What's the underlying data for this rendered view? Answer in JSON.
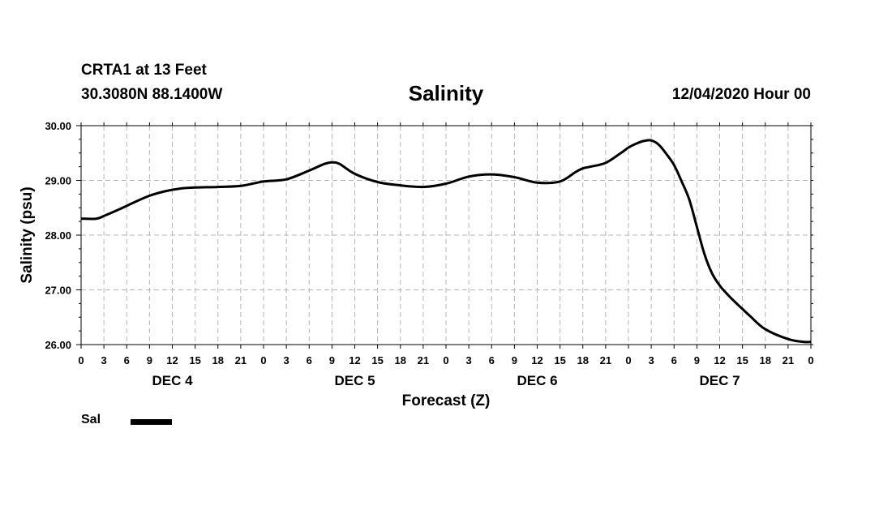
{
  "header": {
    "station": "CRTA1 at 13 Feet",
    "coords": "30.3080N 88.1400W",
    "title": "Salinity",
    "datetime": "12/04/2020 Hour 00"
  },
  "legend": {
    "label": "Sal",
    "color": "#000000"
  },
  "chart_data": {
    "type": "line",
    "title": "Salinity",
    "xlabel": "Forecast (Z)",
    "ylabel": "Salinity (psu)",
    "ylim": [
      26.0,
      30.0
    ],
    "xlim_hours": [
      0,
      96
    ],
    "grid": true,
    "y_ticks": [
      "26.00",
      "27.00",
      "28.00",
      "29.00",
      "30.00"
    ],
    "y_tick_values": [
      26,
      27,
      28,
      29,
      30
    ],
    "x_tick_hours": [
      0,
      3,
      6,
      9,
      12,
      15,
      18,
      21,
      24,
      27,
      30,
      33,
      36,
      39,
      42,
      45,
      48,
      51,
      54,
      57,
      60,
      63,
      66,
      69,
      72,
      75,
      78,
      81,
      84,
      87,
      90,
      93,
      96
    ],
    "x_tick_labels": [
      "0",
      "3",
      "6",
      "9",
      "12",
      "15",
      "18",
      "21",
      "0",
      "3",
      "6",
      "9",
      "12",
      "15",
      "18",
      "21",
      "0",
      "3",
      "6",
      "9",
      "12",
      "15",
      "18",
      "21",
      "0",
      "3",
      "6",
      "9",
      "12",
      "15",
      "18",
      "21",
      "0"
    ],
    "day_labels": [
      {
        "label": "DEC 4",
        "hour": 12
      },
      {
        "label": "DEC 5",
        "hour": 36
      },
      {
        "label": "DEC 6",
        "hour": 60
      },
      {
        "label": "DEC 7",
        "hour": 84
      }
    ],
    "series": [
      {
        "name": "Sal",
        "color": "#000000",
        "x": [
          0,
          2,
          3,
          5,
          7,
          9,
          11,
          13,
          15,
          18,
          21,
          24,
          27,
          30,
          32,
          33,
          34,
          36,
          39,
          42,
          45,
          48,
          51,
          54,
          57,
          60,
          63,
          65,
          66,
          67,
          69,
          71,
          72,
          73,
          74,
          75,
          76,
          77,
          78,
          79,
          80,
          81,
          82,
          83,
          84,
          85,
          86,
          87,
          88,
          90,
          93,
          95,
          96
        ],
        "y": [
          28.3,
          28.3,
          28.35,
          28.47,
          28.6,
          28.72,
          28.8,
          28.85,
          28.87,
          28.88,
          28.9,
          28.98,
          29.02,
          29.18,
          29.3,
          29.33,
          29.3,
          29.12,
          28.97,
          28.91,
          28.88,
          28.94,
          29.07,
          29.11,
          29.06,
          28.96,
          28.98,
          29.15,
          29.22,
          29.25,
          29.32,
          29.5,
          29.6,
          29.67,
          29.72,
          29.73,
          29.65,
          29.48,
          29.28,
          28.98,
          28.65,
          28.15,
          27.65,
          27.3,
          27.08,
          26.92,
          26.78,
          26.65,
          26.52,
          26.28,
          26.1,
          26.05,
          26.05
        ]
      }
    ]
  }
}
